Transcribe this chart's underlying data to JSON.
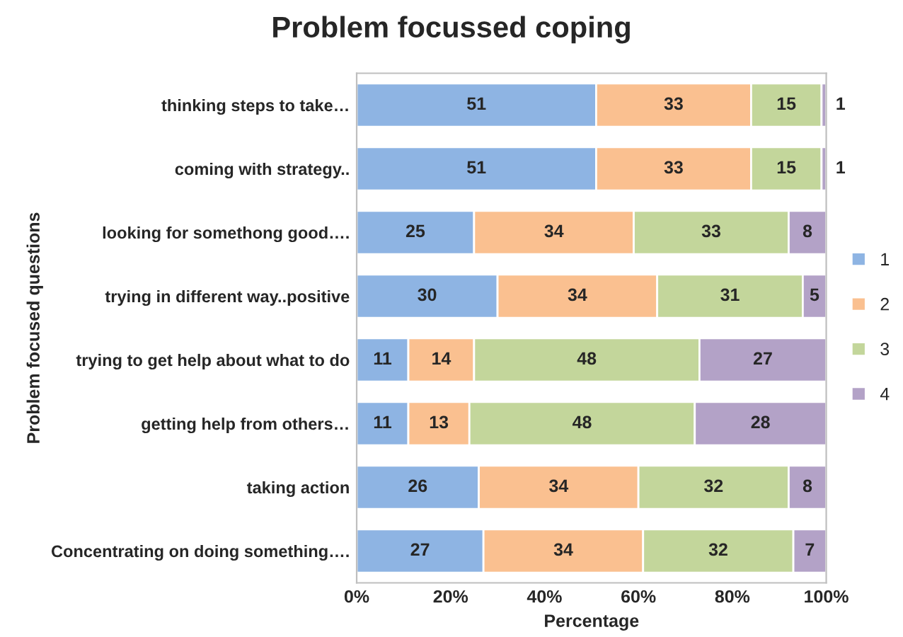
{
  "chart_data": {
    "type": "bar",
    "orientation": "horizontal",
    "stacked": true,
    "title": "Problem focussed coping",
    "xlabel": "Percentage",
    "ylabel": "Problem focused questions",
    "categories": [
      "thinking steps to take…",
      "coming with strategy..",
      "looking for somethong good….",
      "trying in different way..positive",
      "trying to get help about what to do",
      "getting help from others…",
      "taking action",
      "Concentrating on doing something…."
    ],
    "series": [
      {
        "name": "1",
        "color": "#8eb4e3",
        "values": [
          51,
          51,
          25,
          30,
          11,
          11,
          26,
          27
        ]
      },
      {
        "name": "2",
        "color": "#fac090",
        "values": [
          33,
          33,
          34,
          34,
          14,
          13,
          34,
          34
        ]
      },
      {
        "name": "3",
        "color": "#c3d69b",
        "values": [
          15,
          15,
          33,
          31,
          48,
          48,
          32,
          32
        ]
      },
      {
        "name": "4",
        "color": "#b3a2c7",
        "values": [
          1,
          1,
          8,
          5,
          27,
          28,
          8,
          7
        ]
      }
    ],
    "xlim": [
      0,
      100
    ],
    "xticks": [
      {
        "value": 0,
        "label": "0%"
      },
      {
        "value": 20,
        "label": "20%"
      },
      {
        "value": 40,
        "label": "40%"
      },
      {
        "value": 60,
        "label": "60%"
      },
      {
        "value": 80,
        "label": "80%"
      },
      {
        "value": 100,
        "label": "100%"
      }
    ],
    "data_labels": true,
    "legend": "right",
    "grid": false
  }
}
